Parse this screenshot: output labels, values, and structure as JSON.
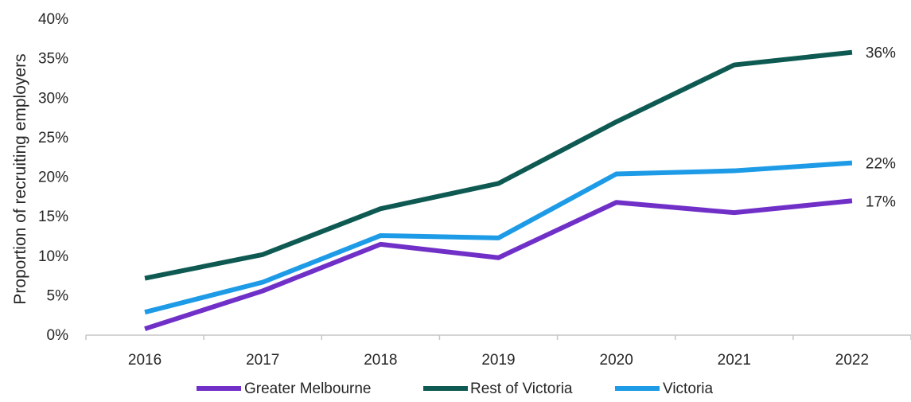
{
  "chart_data": {
    "type": "line",
    "title": "",
    "xlabel": "",
    "ylabel": "Proportion of recruiting employers",
    "categories": [
      "2016",
      "2017",
      "2018",
      "2019",
      "2020",
      "2021",
      "2022"
    ],
    "ylim": [
      0,
      40
    ],
    "yticks": [
      "0%",
      "5%",
      "10%",
      "15%",
      "20%",
      "25%",
      "30%",
      "35%",
      "40%"
    ],
    "grid": false,
    "legend_position": "bottom",
    "series": [
      {
        "name": "Greater Melbourne",
        "color": "#7030c8",
        "values": [
          0.8,
          5.6,
          11.5,
          9.8,
          16.8,
          15.5,
          17.0
        ],
        "end_label": "17%"
      },
      {
        "name": "Rest of Victoria",
        "color": "#0e5a52",
        "values": [
          7.2,
          10.2,
          16.0,
          19.2,
          27.0,
          34.2,
          35.8
        ],
        "end_label": "36%"
      },
      {
        "name": "Victoria",
        "color": "#1e9be6",
        "values": [
          2.9,
          6.7,
          12.6,
          12.3,
          20.4,
          20.8,
          21.8
        ],
        "end_label": "22%"
      }
    ]
  }
}
